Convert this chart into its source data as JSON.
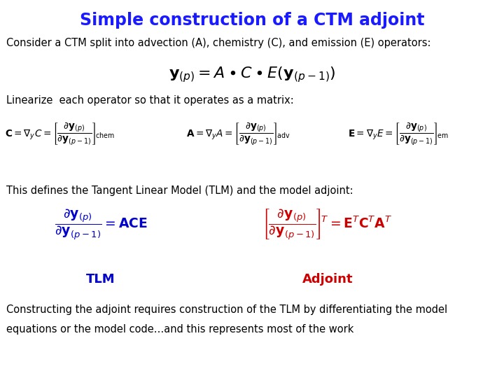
{
  "title": "Simple construction of a CTM adjoint",
  "title_color": "#1a1aff",
  "title_fontsize": 17,
  "bg_color": "#ffffff",
  "text_color": "#000000",
  "blue_color": "#0000cc",
  "red_color": "#cc0000",
  "line1": "Consider a CTM split into advection (A), chemistry (C), and emission (E) operators:",
  "line2": "Linearize  each operator so that it operates as a matrix:",
  "line3": "This defines the Tangent Linear Model (TLM) and the model adjoint:",
  "label_TLM": "TLM",
  "label_ADJ": "Adjoint",
  "line4a": "Constructing the adjoint requires construction of the TLM by differentiating the model",
  "line4b": "equations or the model code…and this represents most of the work"
}
